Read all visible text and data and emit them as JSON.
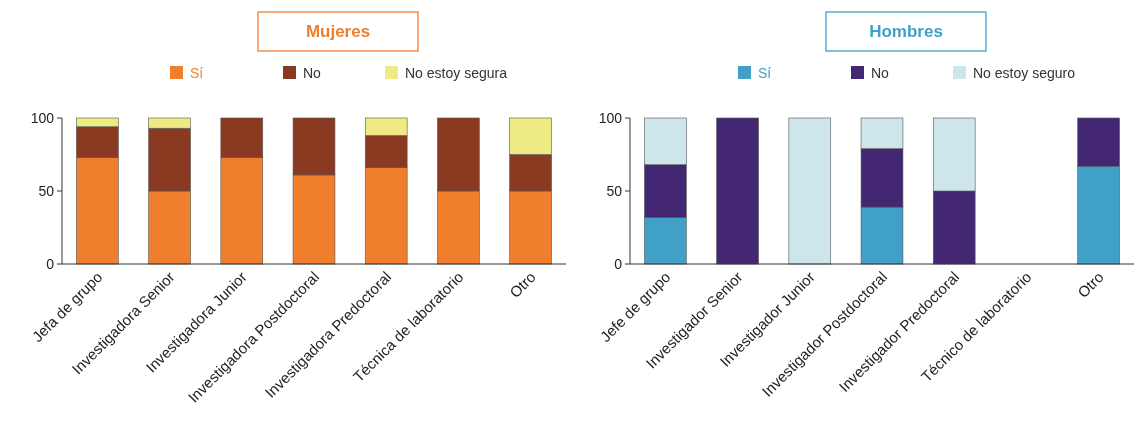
{
  "chart_data": [
    {
      "type": "bar",
      "title": "Mujeres",
      "stacked": true,
      "legend": "top",
      "grid": false,
      "ylim": [
        0,
        100
      ],
      "yticks": [
        0,
        50,
        100
      ],
      "categories": [
        "Jefa de grupo",
        "Investigadora Senior",
        "Investigadora Junior",
        "Investigadora Postdoctoral",
        "Investigadora Predoctoral",
        "Técnica de laboratorio",
        "Otro"
      ],
      "series": [
        {
          "name": "Sí",
          "color": "#ef7f2d",
          "values": [
            73,
            50,
            73,
            61,
            66,
            50,
            50
          ]
        },
        {
          "name": "No",
          "color": "#8b3a22",
          "values": [
            21,
            43,
            27,
            39,
            22,
            50,
            25
          ]
        },
        {
          "name": "No estoy segura",
          "color": "#eeeb85",
          "values": [
            6,
            7,
            0,
            0,
            12,
            0,
            25
          ]
        }
      ]
    },
    {
      "type": "bar",
      "title": "Hombres",
      "stacked": true,
      "legend": "top",
      "grid": false,
      "ylim": [
        0,
        100
      ],
      "yticks": [
        0,
        50,
        100
      ],
      "categories": [
        "Jefe de grupo",
        "Investigador Senior",
        "Investigador Junior",
        "Investigador Postdoctoral",
        "Investigador Predoctoral",
        "Técnico de laboratorio",
        "Otro"
      ],
      "series": [
        {
          "name": "Sí",
          "color": "#41a0c8",
          "values": [
            32,
            0,
            0,
            39,
            0,
            null,
            67
          ]
        },
        {
          "name": "No",
          "color": "#432772",
          "values": [
            36,
            100,
            0,
            40,
            50,
            null,
            33
          ]
        },
        {
          "name": "No estoy seguro",
          "color": "#cde6ec",
          "values": [
            32,
            0,
            100,
            21,
            50,
            null,
            0
          ]
        }
      ]
    }
  ]
}
